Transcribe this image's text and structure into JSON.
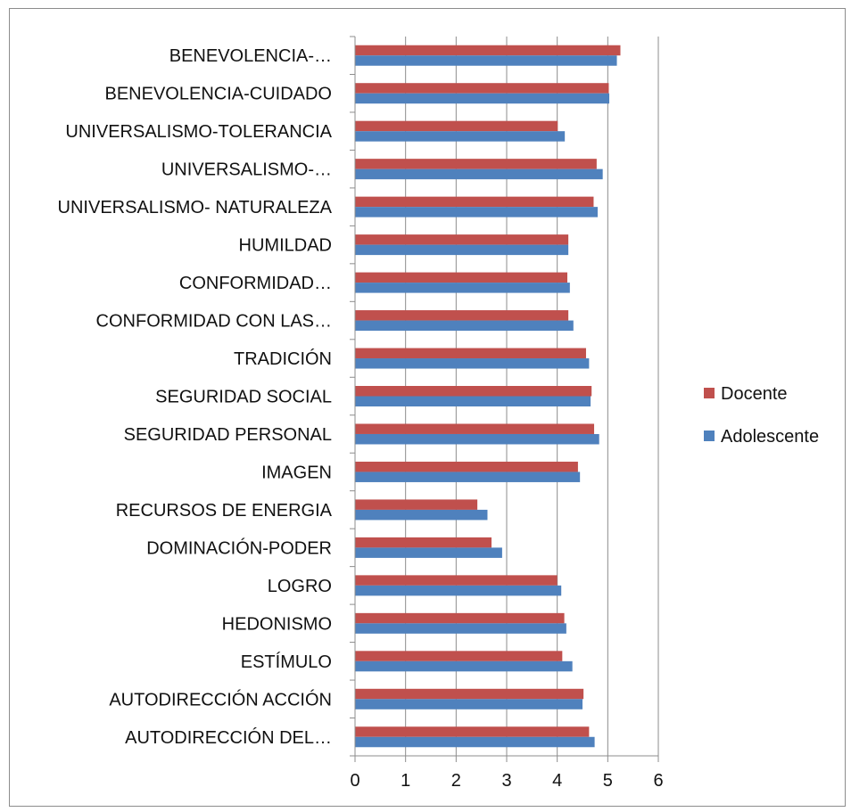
{
  "chart_data": {
    "type": "bar",
    "orientation": "horizontal",
    "title": "",
    "xlabel": "",
    "ylabel": "",
    "categories": [
      "BENEVOLENCIA-…",
      "BENEVOLENCIA-CUIDADO",
      "UNIVERSALISMO-TOLERANCIA",
      "UNIVERSALISMO-…",
      "UNIVERSALISMO- NATURALEZA",
      "HUMILDAD",
      "CONFORMIDAD…",
      "CONFORMIDAD CON LAS…",
      "TRADICIÓN",
      "SEGURIDAD SOCIAL",
      "SEGURIDAD PERSONAL",
      "IMAGEN",
      "RECURSOS DE ENERGIA",
      "DOMINACIÓN-PODER",
      "LOGRO",
      "HEDONISMO",
      "ESTÍMULO",
      "AUTODIRECCIÓN ACCIÓN",
      "AUTODIRECCIÓN DEL…"
    ],
    "series": [
      {
        "name": "Docente",
        "color": "#c0504d",
        "values": [
          5.25,
          5.02,
          4.01,
          4.78,
          4.72,
          4.22,
          4.2,
          4.22,
          4.57,
          4.68,
          4.73,
          4.41,
          2.42,
          2.7,
          4.0,
          4.14,
          4.1,
          4.52,
          4.63
        ]
      },
      {
        "name": "Adolescente",
        "color": "#4f81bd",
        "values": [
          5.18,
          5.03,
          4.15,
          4.9,
          4.8,
          4.22,
          4.25,
          4.32,
          4.63,
          4.66,
          4.83,
          4.45,
          2.62,
          2.91,
          4.08,
          4.18,
          4.3,
          4.5,
          4.74
        ]
      }
    ],
    "xlim": [
      0,
      6
    ],
    "xticks": [
      "0",
      "1",
      "2",
      "3",
      "4",
      "5",
      "6"
    ],
    "grid": true,
    "legend_position": "right"
  }
}
